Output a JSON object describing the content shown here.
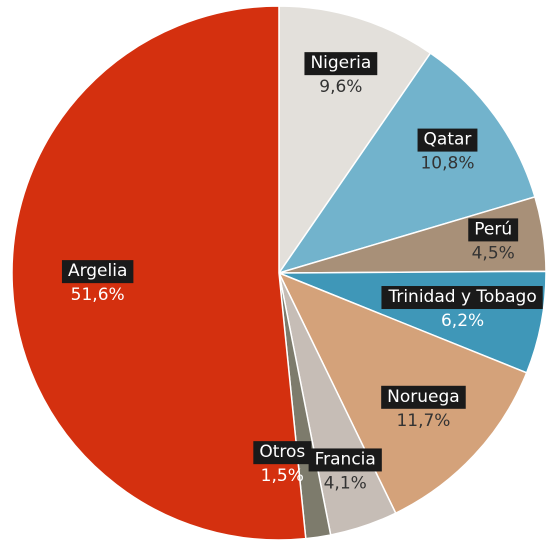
{
  "chart_data": {
    "type": "pie",
    "categories": [
      "Nigeria",
      "Qatar",
      "Perú",
      "Trinidad y Tobago",
      "Noruega",
      "Francia",
      "Otros",
      "Argelia"
    ],
    "values": [
      9.6,
      10.8,
      4.5,
      6.2,
      11.7,
      4.1,
      1.5,
      51.6
    ],
    "value_labels": [
      "9,6%",
      "10,8%",
      "4,5%",
      "6,2%",
      "11,7%",
      "4,1%",
      "1,5%",
      "51,6%"
    ],
    "colors": [
      "#e3e0db",
      "#72b3cc",
      "#a89078",
      "#3f97b8",
      "#d4a27a",
      "#c6bdb6",
      "#7d7b6c",
      "#d4300f"
    ]
  }
}
